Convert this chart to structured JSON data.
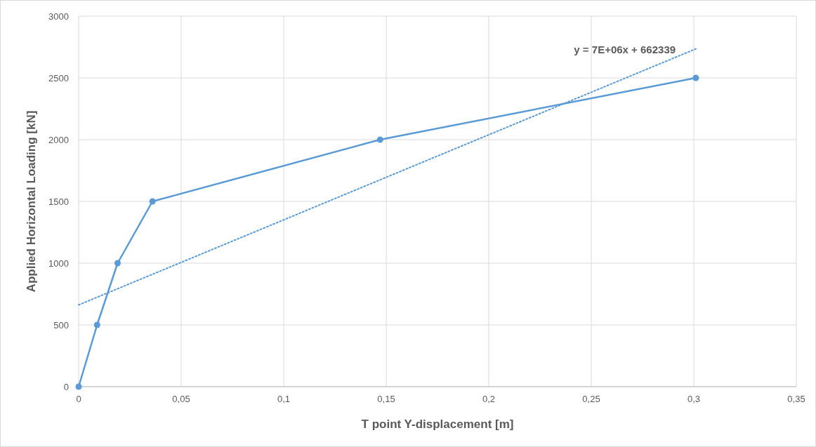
{
  "chart_data": {
    "type": "line",
    "xlabel": "T point Y-displacement [m]",
    "ylabel": "Applied Horizontal Loading [kN]",
    "xlim": [
      0,
      0.35
    ],
    "ylim": [
      0,
      3000
    ],
    "xticks": [
      0,
      {
        "value": 0.05,
        "label": "0,05"
      },
      {
        "value": 0.1,
        "label": "0,1"
      },
      {
        "value": 0.15,
        "label": "0,15"
      },
      {
        "value": 0.2,
        "label": "0,2"
      },
      {
        "value": 0.25,
        "label": "0,25"
      },
      {
        "value": 0.3,
        "label": "0,3"
      },
      {
        "value": 0.35,
        "label": "0,35"
      }
    ],
    "yticks": [
      0,
      500,
      1000,
      1500,
      2000,
      2500,
      3000
    ],
    "grid": true,
    "series": [
      {
        "color": "#5b9bd5",
        "x": [
          0,
          0.009,
          0.019,
          0.036,
          0.147,
          0.301
        ],
        "values": [
          0,
          500,
          1000,
          1500,
          2000,
          2500
        ],
        "marker": "circle",
        "line_style": "solid"
      },
      {
        "type": "line",
        "color": "#5b9bd5",
        "x": [
          0,
          0.301
        ],
        "values": [
          662,
          2735
        ],
        "marker": "none",
        "line_style": "dotted"
      }
    ],
    "annotations": [
      "y = 7E+06x + 662339"
    ]
  }
}
